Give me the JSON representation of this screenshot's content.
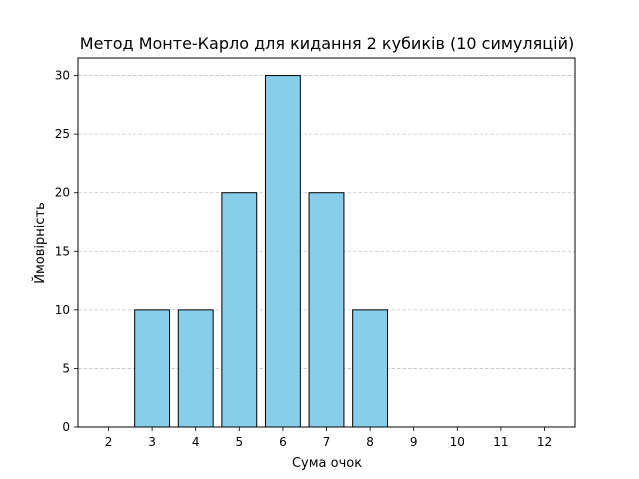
{
  "chart_data": {
    "type": "bar",
    "title": "Метод Монте-Карло для кидання 2 кубиків (10 симуляцій)",
    "xlabel": "Сума очок",
    "ylabel": "Ймовірність",
    "categories": [
      "2",
      "3",
      "4",
      "5",
      "6",
      "7",
      "8",
      "9",
      "10",
      "11",
      "12"
    ],
    "values": [
      0,
      10,
      10,
      20,
      30,
      20,
      10,
      0,
      0,
      0,
      0
    ],
    "ylim": [
      0,
      31.5
    ],
    "yticks": [
      0,
      5,
      10,
      15,
      20,
      25,
      30
    ],
    "grid": "horizontal dashed",
    "colors": {
      "bar_fill": "#87ceeb",
      "bar_edge": "#000000",
      "grid": "#c4c4c4",
      "axis": "#000000"
    }
  }
}
